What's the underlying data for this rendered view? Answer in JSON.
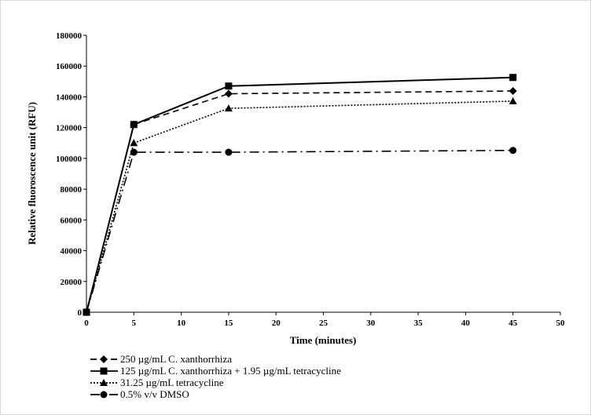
{
  "chart_data": {
    "type": "line",
    "title": "",
    "xlabel": "Time (minutes)",
    "ylabel": "Relative fluoroscence unit (RFU)",
    "xlim": [
      0,
      50
    ],
    "ylim": [
      0,
      180000
    ],
    "xticks": [
      0,
      5,
      10,
      15,
      20,
      25,
      30,
      35,
      40,
      45,
      50
    ],
    "yticks": [
      0,
      20000,
      40000,
      60000,
      80000,
      100000,
      120000,
      140000,
      160000,
      180000
    ],
    "grid": false,
    "legend_position": "bottom-left",
    "x": [
      0,
      5,
      15,
      45
    ],
    "series": [
      {
        "name": "250 µg/mL C. xanthorrhiza",
        "marker": "diamond",
        "dash": "dashed",
        "values": [
          0,
          122000,
          142000,
          143800
        ]
      },
      {
        "name": "125 µg/mL C. xanthorrhiza + 1.95 µg/mL tetracycline",
        "marker": "square",
        "dash": "solid",
        "values": [
          0,
          122000,
          147000,
          152600
        ]
      },
      {
        "name": "31.25 µg/mL tetracycline",
        "marker": "triangle",
        "dash": "dotted",
        "values": [
          0,
          110000,
          132500,
          137200
        ]
      },
      {
        "name": "0.5% v/v DMSO",
        "marker": "circle",
        "dash": "dashdot",
        "values": [
          0,
          104000,
          104000,
          105200
        ]
      }
    ]
  }
}
